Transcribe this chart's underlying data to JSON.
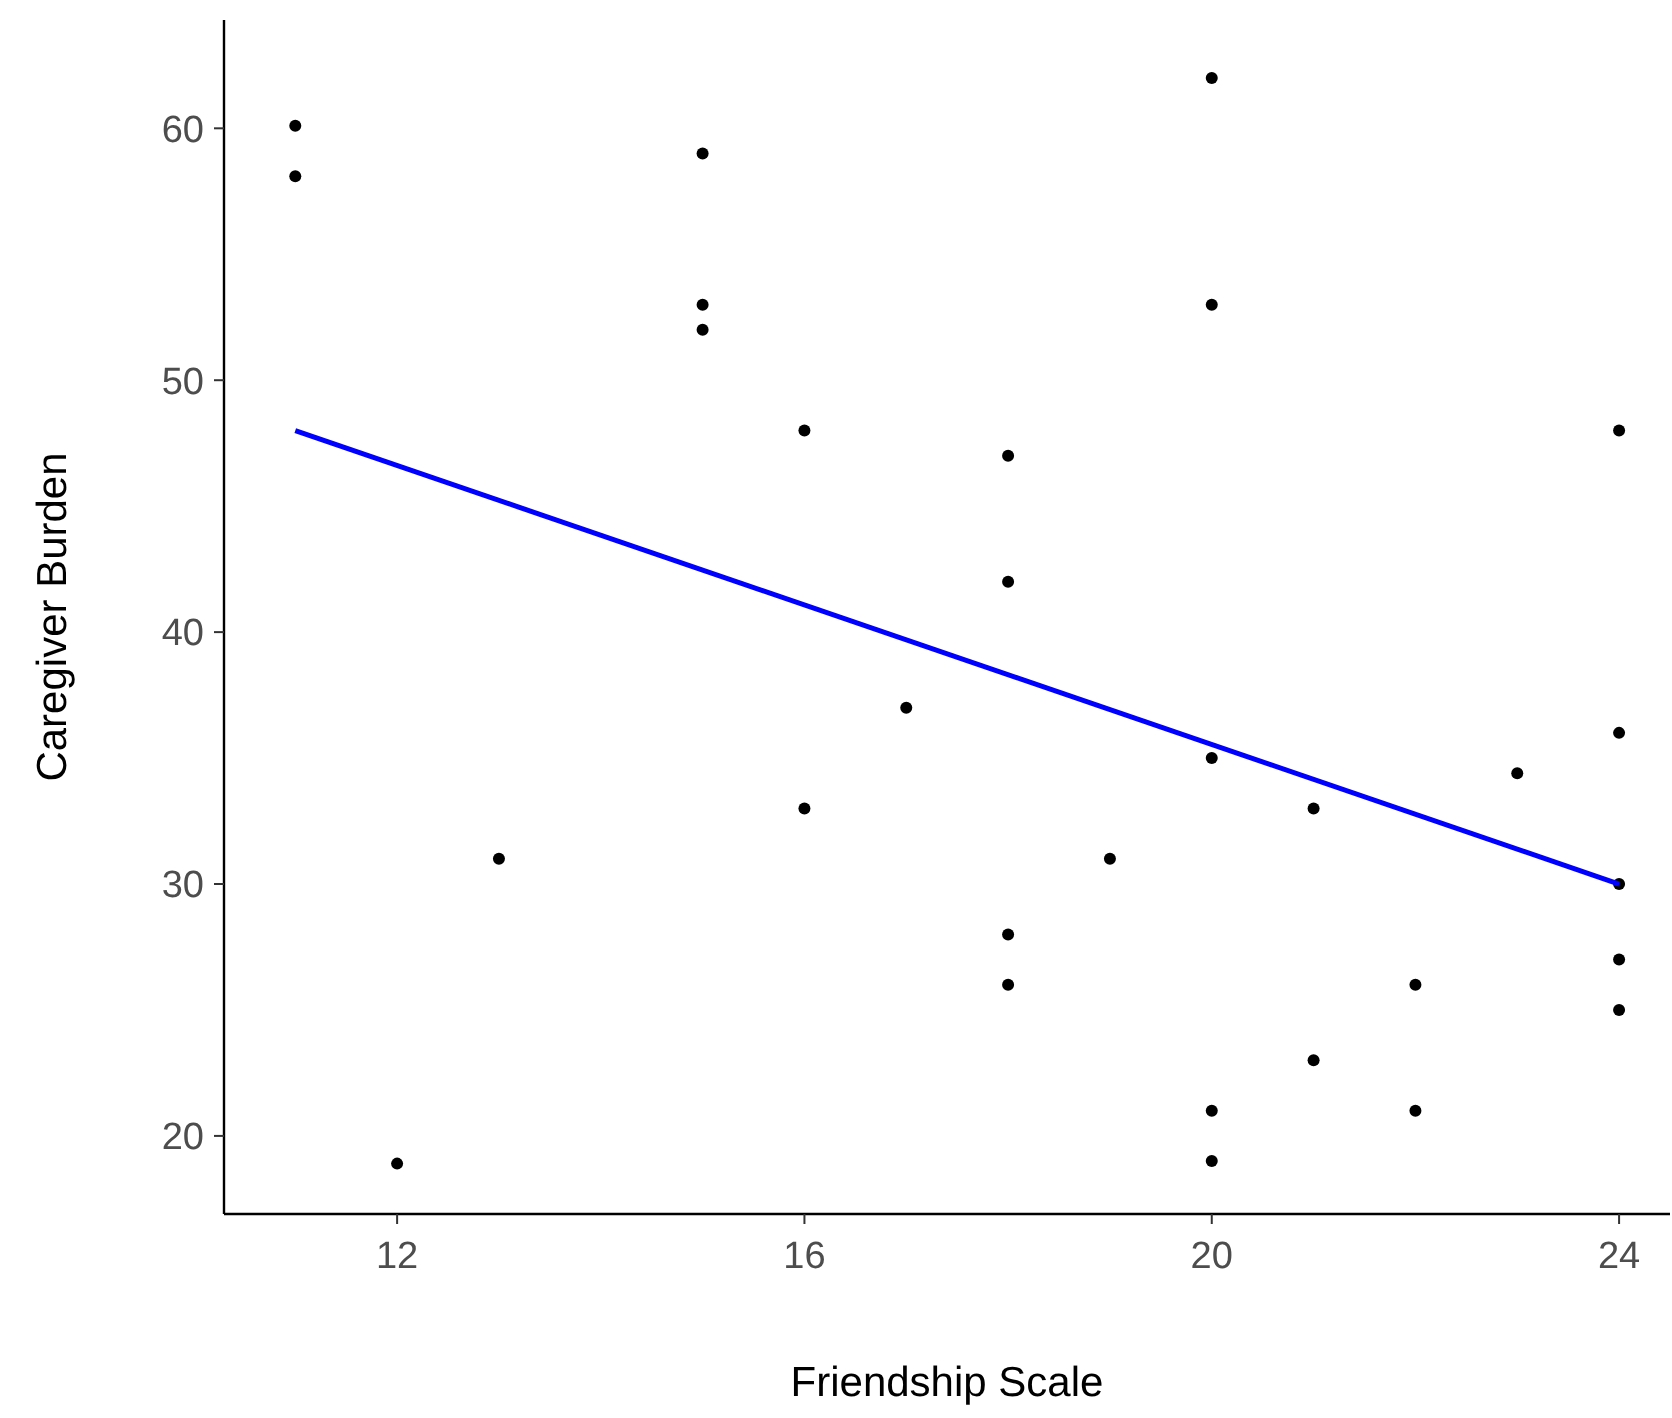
{
  "chart_data": {
    "type": "scatter",
    "xlabel": "Friendship Scale",
    "ylabel": "Caregiver Burden",
    "xlim": [
      10.3,
      24.5
    ],
    "xticks": [
      12,
      16,
      20,
      24
    ],
    "ylim": [
      16.9,
      64.3
    ],
    "yticks": [
      20,
      30,
      40,
      50,
      60
    ],
    "grid": false,
    "marker": "circle",
    "series": [
      {
        "color": "#000000",
        "x": [
          11,
          11,
          12,
          13,
          15,
          15,
          15,
          16,
          16,
          17,
          18,
          18,
          18,
          18,
          19,
          20,
          20,
          20,
          20,
          20,
          21,
          21,
          22,
          22,
          23,
          24,
          24,
          24,
          24,
          24
        ],
        "values": [
          60.1,
          58.1,
          18.9,
          31,
          59,
          53,
          52,
          48,
          33,
          37,
          47,
          42,
          28,
          26,
          31,
          62,
          53,
          35,
          21,
          19,
          33,
          23,
          26,
          21,
          34.4,
          48,
          36,
          30,
          27,
          25
        ]
      },
      {
        "type": "line",
        "color": "#0000ff",
        "x": [
          11,
          24
        ],
        "values": [
          48,
          30
        ],
        "marker": "none"
      }
    ]
  }
}
